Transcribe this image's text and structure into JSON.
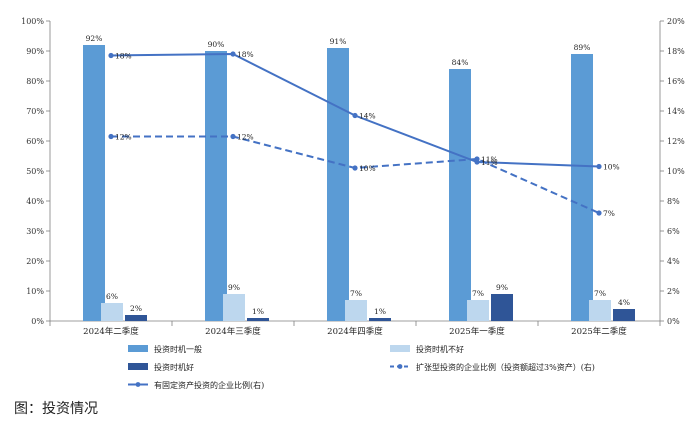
{
  "caption": "图：投资情况",
  "chart_data": {
    "type": "bar",
    "categories": [
      "2024年二季度",
      "2024年三季度",
      "2024年四季度",
      "2025年一季度",
      "2025年二季度"
    ],
    "left_axis": {
      "min": 0,
      "max": 100,
      "step": 10,
      "unit": "%"
    },
    "right_axis": {
      "min": 0,
      "max": 20,
      "step": 2,
      "unit": "%"
    },
    "grid": false,
    "legend_position": "bottom",
    "series": [
      {
        "name": "投资时机一般",
        "kind": "bar",
        "axis": "left",
        "color": "#5b9bd5",
        "values": [
          92,
          90,
          91,
          84,
          89
        ],
        "labels": [
          "92%",
          "90%",
          "91%",
          "84%",
          "89%"
        ]
      },
      {
        "name": "投资时机不好",
        "kind": "bar",
        "axis": "left",
        "color": "#bdd7ee",
        "values": [
          6,
          9,
          7,
          7,
          7
        ],
        "labels": [
          "6%",
          "9%",
          "7%",
          "7%",
          "7%"
        ]
      },
      {
        "name": "投资时机好",
        "kind": "bar",
        "axis": "left",
        "color": "#2f5597",
        "values": [
          2,
          1,
          1,
          9,
          4
        ],
        "labels": [
          "2%",
          "1%",
          "1%",
          "9%",
          "4%"
        ]
      },
      {
        "name": "扩张型投资的企业比例（投资额超过3%资产）(右)",
        "kind": "line",
        "axis": "right",
        "color": "#4472c4",
        "dashed": true,
        "values": [
          12.3,
          12.3,
          10.2,
          10.8,
          7.2
        ],
        "labels": [
          "12%",
          "12%",
          "10%",
          "11%",
          "7%"
        ]
      },
      {
        "name": "有固定资产投资的企业比例(右)",
        "kind": "line",
        "axis": "right",
        "color": "#4472c4",
        "dashed": false,
        "values": [
          17.7,
          17.8,
          13.7,
          10.6,
          10.3
        ],
        "labels": [
          "18%",
          "18%",
          "14%",
          "11%",
          "10%"
        ]
      }
    ],
    "legend_order": [
      0,
      1,
      2,
      3,
      4
    ]
  }
}
